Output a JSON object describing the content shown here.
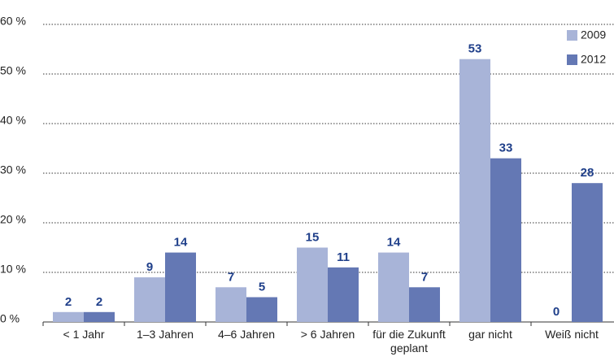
{
  "chart_data": {
    "type": "bar",
    "categories": [
      "< 1 Jahr",
      "1–3 Jahren",
      "4–6 Jahren",
      "> 6 Jahren",
      "für die Zukunft geplant",
      "gar nicht",
      "Weiß nicht"
    ],
    "series": [
      {
        "name": "2009",
        "color": "#a8b4d8",
        "values": [
          2,
          9,
          7,
          15,
          14,
          53,
          0
        ]
      },
      {
        "name": "2012",
        "color": "#6478b4",
        "values": [
          2,
          14,
          5,
          11,
          7,
          33,
          28
        ]
      }
    ],
    "ylim": [
      0,
      60
    ],
    "yticks": [
      {
        "value": 0,
        "label": "0 %"
      },
      {
        "value": 10,
        "label": "10 %"
      },
      {
        "value": 20,
        "label": "20 %"
      },
      {
        "value": 30,
        "label": "30 %"
      },
      {
        "value": 40,
        "label": "40 %"
      },
      {
        "value": 50,
        "label": "50 %"
      },
      {
        "value": 60,
        "label": "60 %"
      }
    ],
    "grid": true,
    "legend": "upper right"
  }
}
